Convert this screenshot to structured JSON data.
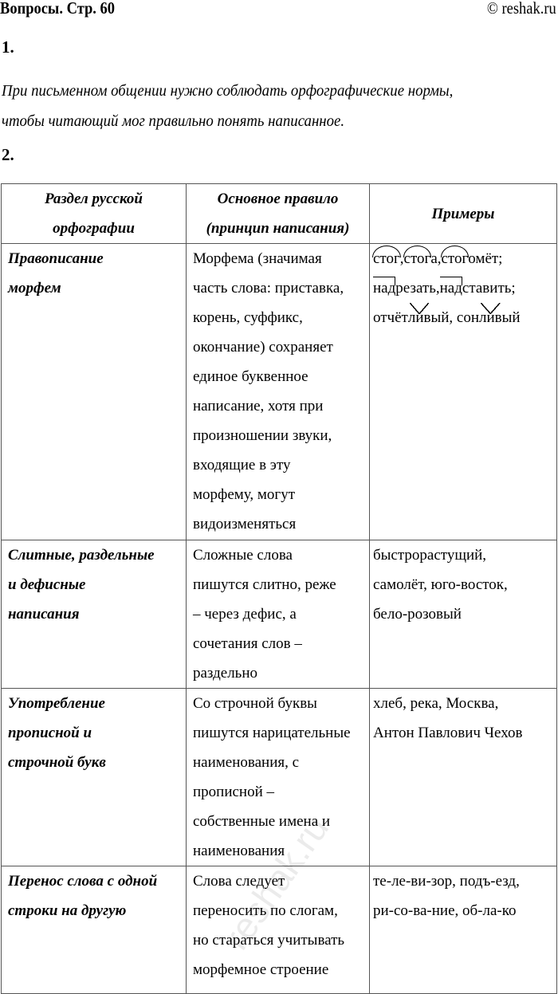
{
  "header": {
    "title": "Вопросы. Стр. 60",
    "copyright": "© reshak.ru"
  },
  "q1": {
    "number": "1.",
    "answer_lines": [
      "При письменном общении нужно соблюдать орфографические нормы,",
      "чтобы читающий мог правильно понять написанное."
    ]
  },
  "q2": {
    "number": "2."
  },
  "table": {
    "headers": [
      [
        "Раздел русской",
        "орфографии"
      ],
      [
        "Основное правило",
        "(принцип написания)"
      ],
      [
        "Примеры"
      ]
    ],
    "rows": [
      {
        "section": [
          "Правописание",
          "морфем"
        ],
        "rule": [
          "Морфема (значимая",
          "часть слова: приставка,",
          "корень, суффикс,",
          "окончание) сохраняет",
          "единое буквенное",
          "написание, хотя при",
          "произношении звуки,",
          "входящие в эту",
          "морфему, могут",
          "видоизменяться"
        ],
        "examples": [
          [
            {
              "t": "стог",
              "mark": "root"
            },
            {
              "t": ", "
            },
            {
              "t": "стог",
              "mark": "root"
            },
            {
              "t": "а, "
            },
            {
              "t": "стог",
              "mark": "root"
            },
            {
              "t": "омёт;"
            }
          ],
          [
            {
              "t": "над",
              "mark": "prefix"
            },
            {
              "t": "резать, "
            },
            {
              "t": "над",
              "mark": "prefix"
            },
            {
              "t": "ставить;"
            }
          ],
          [
            {
              "t": "отчёт"
            },
            {
              "t": "лив",
              "mark": "suffix"
            },
            {
              "t": "ый, сон"
            },
            {
              "t": "лив",
              "mark": "suffix"
            },
            {
              "t": "ый"
            }
          ]
        ]
      },
      {
        "section": [
          "Слитные, раздельные",
          "и дефисные",
          "написания"
        ],
        "rule": [
          "Сложные слова",
          "пишутся слитно, реже",
          "– через дефис, а",
          "сочетания слов –",
          "раздельно"
        ],
        "examples": [
          [
            {
              "t": "быстрорастущий,"
            }
          ],
          [
            {
              "t": "самолёт, юго-восток,"
            }
          ],
          [
            {
              "t": "бело-розовый"
            }
          ]
        ]
      },
      {
        "section": [
          "Употребление",
          "прописной и",
          "строчной букв"
        ],
        "rule": [
          "Со строчной буквы",
          "пишутся нарицательные",
          "наименования, с",
          "прописной –",
          "собственные имена и",
          "наименования"
        ],
        "examples": [
          [
            {
              "t": "хлеб, река, Москва,"
            }
          ],
          [
            {
              "t": "Антон Павлович Чехов"
            }
          ]
        ]
      },
      {
        "section": [
          "Перенос слова с одной",
          "строки на другую"
        ],
        "rule": [
          "Слова следует",
          "переносить по слогам,",
          "но стараться учитывать",
          "морфемное строение"
        ],
        "examples": [
          [
            {
              "t": "те-ле-ви-зор, подъ-езд,"
            }
          ],
          [
            {
              "t": "ри-со-ва-ние, об-ла-ко"
            }
          ]
        ]
      }
    ]
  },
  "watermark": "reshak.ru"
}
